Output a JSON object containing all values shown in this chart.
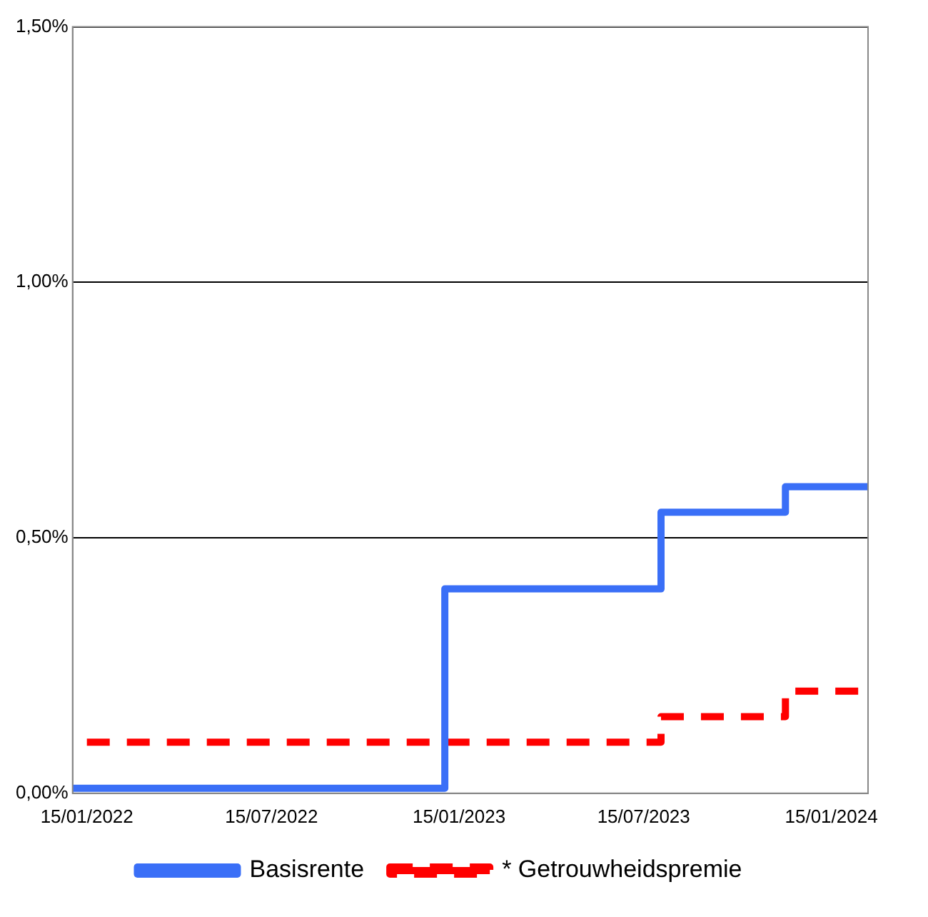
{
  "chart_data": {
    "type": "step",
    "xlim": [
      "2022-01-01",
      "2024-02-20"
    ],
    "xticks": [
      {
        "value": "2022-01-15",
        "label": "15/01/2022"
      },
      {
        "value": "2022-07-15",
        "label": "15/07/2022"
      },
      {
        "value": "2023-01-15",
        "label": "15/01/2023"
      },
      {
        "value": "2023-07-15",
        "label": "15/07/2023"
      },
      {
        "value": "2024-01-15",
        "label": "15/01/2024"
      }
    ],
    "ylim": [
      0,
      1.5
    ],
    "yticks": [
      {
        "value": 0,
        "label": "0,00%"
      },
      {
        "value": 0.5,
        "label": "0,50%"
      },
      {
        "value": 1,
        "label": "1,00%"
      },
      {
        "value": 1.5,
        "label": "1,50%"
      }
    ],
    "series": [
      {
        "name": "Basisrente",
        "color": "#3a6ff7",
        "line_style": "solid",
        "x": [
          "2022-01-01",
          "2023-01-01",
          "2023-08-01",
          "2023-12-01",
          "2024-02-20"
        ],
        "values": [
          0.01,
          0.4,
          0.55,
          0.6,
          0.6
        ]
      },
      {
        "name": "* Getrouwheidspremie",
        "color": "#ff0000",
        "line_style": "dashed",
        "x": [
          "2022-01-15",
          "2023-08-01",
          "2023-12-01",
          "2024-02-20"
        ],
        "values": [
          0.1,
          0.15,
          0.2,
          0.2
        ]
      }
    ],
    "grid": "y",
    "legend": "bottom"
  }
}
